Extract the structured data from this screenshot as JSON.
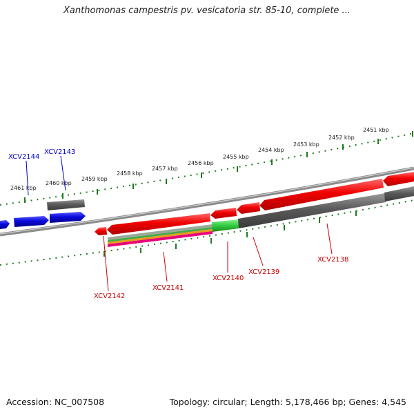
{
  "title": "Xanthomonas campestris pv. vesicatoria str. 85-10, complete ...",
  "footer": {
    "accession": "Accession: NC_007508",
    "summary": "Topology: circular; Length: 5,178,466 bp; Genes: 4,545"
  },
  "ticks": [
    "2461 kbp",
    "2460 kbp",
    "2459 kbp",
    "2458 kbp",
    "2457 kbp",
    "2456 kbp",
    "2455 kbp",
    "2454 kbp",
    "2453 kbp",
    "2452 kbp",
    "2451 kbp"
  ],
  "genes_top": [
    "XCV2144",
    "XCV2143"
  ],
  "genes_bottom": [
    "XCV2142",
    "XCV2141",
    "XCV2140",
    "XCV2139",
    "XCV2138"
  ],
  "colors": {
    "forward": "#0a0adc",
    "reverse": "#e60000",
    "pseudo": "#5a5a5a",
    "highlight": "#2ecc40",
    "axis": "#8a8a8a",
    "tick": "#1e7a1e",
    "label_top": "#0000cc",
    "label_bottom": "#cc0000"
  }
}
